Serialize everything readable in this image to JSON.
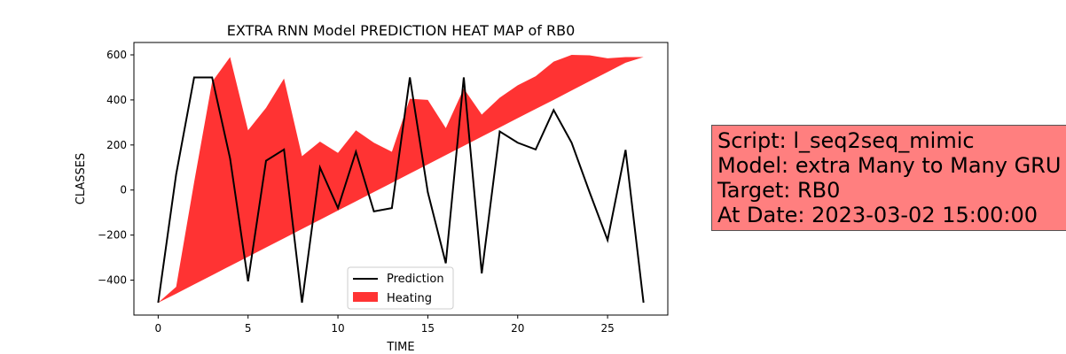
{
  "chart_data": {
    "type": "area",
    "title": "EXTRA RNN Model PREDICTION HEAT MAP of RB0",
    "xlabel": "TIME",
    "ylabel": "CLASSES",
    "xlim": [
      -1.35,
      28.35
    ],
    "ylim": [
      -555,
      655
    ],
    "xticks": [
      0,
      5,
      10,
      15,
      20,
      25
    ],
    "yticks": [
      -400,
      -200,
      0,
      200,
      400,
      600
    ],
    "grid": false,
    "legend_position": "lower center",
    "x": [
      0,
      1,
      2,
      3,
      4,
      5,
      6,
      7,
      8,
      9,
      10,
      11,
      12,
      13,
      14,
      15,
      16,
      17,
      18,
      19,
      20,
      21,
      22,
      23,
      24,
      25,
      26,
      27
    ],
    "series": [
      {
        "name": "Prediction",
        "type": "line",
        "color": "#000000",
        "values": [
          -500,
          70,
          500,
          500,
          140,
          -405,
          130,
          180,
          -500,
          100,
          -80,
          170,
          -95,
          -80,
          500,
          -10,
          -325,
          500,
          -370,
          260,
          210,
          180,
          355,
          210,
          -10,
          -222,
          178,
          -500
        ]
      },
      {
        "name": "Heating",
        "type": "area",
        "color": "#ff0000",
        "lower": [
          -500,
          -460,
          -419,
          -378,
          -337,
          -296,
          -255,
          -214,
          -173,
          -132,
          -91,
          -50,
          -9,
          32,
          73,
          114,
          155,
          196,
          237,
          278,
          319,
          360,
          400,
          442,
          483,
          524,
          565,
          590
        ],
        "upper": [
          -500,
          -430,
          35,
          480,
          590,
          265,
          365,
          495,
          150,
          215,
          165,
          265,
          210,
          170,
          405,
          400,
          275,
          450,
          335,
          410,
          465,
          505,
          570,
          600,
          598,
          585,
          590,
          590
        ]
      }
    ]
  },
  "infobox": {
    "line1": "Script: l_seq2seq_mimic",
    "line2": "Model: extra Many to Many GRU",
    "line3": "Target: RB0",
    "line4": "At Date: 2023-03-02 15:00:00"
  }
}
